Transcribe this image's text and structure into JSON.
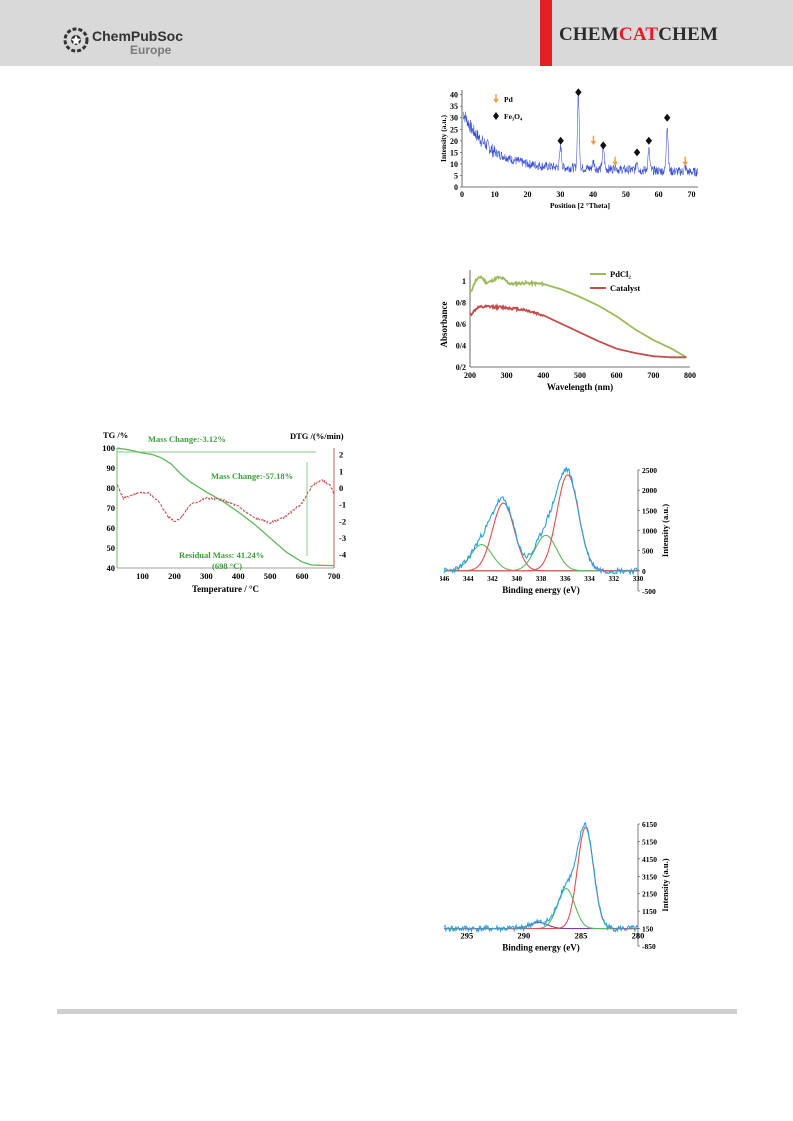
{
  "header": {
    "publisher_line1": "ChemPubSoc",
    "publisher_line2": "Europe",
    "journal_part1": "CHEM",
    "journal_part2": "CAT",
    "journal_part3": "CHEM"
  },
  "colors": {
    "accent_red": "#e31e25",
    "header_gray": "#d9d9d9"
  },
  "chart_data": [
    {
      "id": "xrd",
      "type": "line",
      "xlabel": "Position [2 °Theta]",
      "ylabel": "Intensity (a.u.)",
      "xlim": [
        0,
        72
      ],
      "ylim": [
        0,
        42
      ],
      "xticks": [
        0,
        10,
        20,
        30,
        40,
        50,
        60,
        70
      ],
      "yticks": [
        0,
        5,
        10,
        15,
        20,
        25,
        30,
        35,
        40
      ],
      "legend": [
        {
          "marker": "arrow",
          "label": "Pd"
        },
        {
          "marker": "diamond",
          "label": "Fe₃O₄"
        }
      ],
      "fe3o4_peaks": [
        {
          "x": 30.1,
          "y": 20
        },
        {
          "x": 35.5,
          "y": 41
        },
        {
          "x": 43.1,
          "y": 18
        },
        {
          "x": 53.4,
          "y": 15
        },
        {
          "x": 57.0,
          "y": 20
        },
        {
          "x": 62.6,
          "y": 30
        }
      ],
      "pd_peaks": [
        {
          "x": 40.1,
          "y": 20
        },
        {
          "x": 46.7,
          "y": 11
        },
        {
          "x": 68.1,
          "y": 11
        }
      ],
      "baseline": [
        [
          0,
          33
        ],
        [
          3,
          25
        ],
        [
          6,
          20
        ],
        [
          10,
          15
        ],
        [
          15,
          12
        ],
        [
          20,
          10
        ],
        [
          25,
          9
        ],
        [
          30,
          8.5
        ],
        [
          40,
          8
        ],
        [
          50,
          7.5
        ],
        [
          60,
          7
        ],
        [
          70,
          6.5
        ],
        [
          72,
          6.5
        ]
      ],
      "peak_heights": [
        [
          30.1,
          9
        ],
        [
          35.5,
          31
        ],
        [
          43.1,
          10
        ],
        [
          53.4,
          4
        ],
        [
          57.0,
          9
        ],
        [
          62.6,
          20
        ],
        [
          40.1,
          3
        ],
        [
          46.7,
          2
        ],
        [
          68.1,
          2
        ]
      ]
    },
    {
      "id": "uvvis",
      "type": "line",
      "xlabel": "Wavelength (nm)",
      "ylabel": "Absorbance",
      "xlim": [
        200,
        800
      ],
      "ylim": [
        0.2,
        1.1
      ],
      "xticks": [
        200,
        300,
        400,
        500,
        600,
        700,
        800
      ],
      "yticks": [
        {
          "v": 0.2,
          "t": "0/2"
        },
        {
          "v": 0.4,
          "t": "0/4"
        },
        {
          "v": 0.6,
          "t": "0/6"
        },
        {
          "v": 0.8,
          "t": "0/8"
        },
        {
          "v": 1.0,
          "t": "1"
        }
      ],
      "series": [
        {
          "name": "PdCl₂",
          "color": "#9bbb59",
          "x": [
            200,
            215,
            230,
            245,
            260,
            275,
            290,
            310,
            350,
            400,
            450,
            500,
            550,
            600,
            650,
            700,
            750,
            790
          ],
          "y": [
            0.88,
            1.0,
            1.04,
            0.98,
            1.0,
            1.03,
            1.02,
            0.97,
            0.98,
            0.97,
            0.92,
            0.85,
            0.77,
            0.67,
            0.55,
            0.45,
            0.37,
            0.29
          ]
        },
        {
          "name": "Catalyst",
          "color": "#c0504d",
          "x": [
            200,
            220,
            250,
            300,
            350,
            400,
            450,
            500,
            550,
            600,
            650,
            700,
            750,
            790
          ],
          "y": [
            0.68,
            0.75,
            0.76,
            0.75,
            0.73,
            0.68,
            0.6,
            0.52,
            0.44,
            0.37,
            0.33,
            0.3,
            0.29,
            0.29
          ]
        }
      ]
    },
    {
      "id": "tga",
      "type": "line",
      "xlabel": "Temperature / °C",
      "ylabel": "TG /%",
      "y2label": "DTG /(%/min)",
      "xlim": [
        20,
        700
      ],
      "ylim": [
        40,
        100
      ],
      "y2lim": [
        -4.8,
        2.4
      ],
      "xticks": [
        100,
        200,
        300,
        400,
        500,
        600,
        700
      ],
      "yticks": [
        40,
        50,
        60,
        70,
        80,
        90,
        100
      ],
      "y2ticks": [
        2,
        1,
        0,
        -1,
        -2,
        -3,
        -4
      ],
      "annotations": [
        "Mass Change:-3.12%",
        "Mass Change:-57.18%",
        "Residual Mass: 41.24%",
        "(698 °C)"
      ],
      "series": [
        {
          "name": "TG",
          "color": "#5cb85c",
          "x": [
            20,
            60,
            100,
            130,
            160,
            190,
            220,
            250,
            300,
            350,
            400,
            450,
            500,
            550,
            600,
            630,
            660,
            700
          ],
          "y": [
            100,
            99,
            97.5,
            96.8,
            95,
            92,
            87,
            83,
            78,
            73.5,
            68,
            62,
            55,
            48,
            43,
            41.5,
            41.3,
            41.24
          ]
        },
        {
          "name": "DTG",
          "color": "#c0504d",
          "x": [
            20,
            40,
            60,
            90,
            120,
            150,
            180,
            200,
            220,
            250,
            300,
            350,
            400,
            450,
            500,
            550,
            600,
            630,
            660,
            690,
            700
          ],
          "y": [
            0.2,
            -0.6,
            -0.5,
            -0.3,
            -0.3,
            -0.8,
            -1.7,
            -2.0,
            -1.8,
            -1.0,
            -0.6,
            -0.7,
            -1.1,
            -1.8,
            -2.1,
            -1.7,
            -0.9,
            0.1,
            0.5,
            0.1,
            -0.4
          ]
        }
      ]
    },
    {
      "id": "xps_pd",
      "type": "line",
      "xlabel": "Binding energy (eV)",
      "ylabel": "Intensity (a.u.)",
      "xlim": [
        346,
        330
      ],
      "ylim": [
        -500,
        2500
      ],
      "xticks": [
        346,
        344,
        342,
        340,
        338,
        336,
        334,
        332,
        330
      ],
      "yticks": [
        -500,
        0,
        500,
        1000,
        1500,
        2000,
        2500
      ],
      "components": [
        {
          "color": "#5cb85c",
          "center": 342.9,
          "height": 650,
          "width": 0.9
        },
        {
          "color": "#d9534f",
          "center": 341.1,
          "height": 1680,
          "width": 0.9
        },
        {
          "color": "#5cb85c",
          "center": 337.6,
          "height": 880,
          "width": 0.9
        },
        {
          "color": "#d9534f",
          "center": 335.8,
          "height": 2380,
          "width": 0.9
        }
      ],
      "envelope_color": "#2e9fd8"
    },
    {
      "id": "xps_c",
      "type": "line",
      "xlabel": "Binding energy (eV)",
      "ylabel": "Intensity (a.u.)",
      "xlim": [
        297,
        280
      ],
      "ylim": [
        -850,
        6150
      ],
      "xticks": [
        295,
        290,
        285,
        280
      ],
      "yticks": [
        -850,
        150,
        1150,
        2150,
        3150,
        4150,
        5150,
        6150
      ],
      "components": [
        {
          "color": "#7b3fa0",
          "center": 288.7,
          "height": 350,
          "width": 0.8
        },
        {
          "color": "#5cb85c",
          "center": 286.3,
          "height": 2300,
          "width": 0.75
        },
        {
          "color": "#d9534f",
          "center": 284.6,
          "height": 5800,
          "width": 0.7
        }
      ],
      "envelope_color": "#2e9fd8"
    }
  ]
}
